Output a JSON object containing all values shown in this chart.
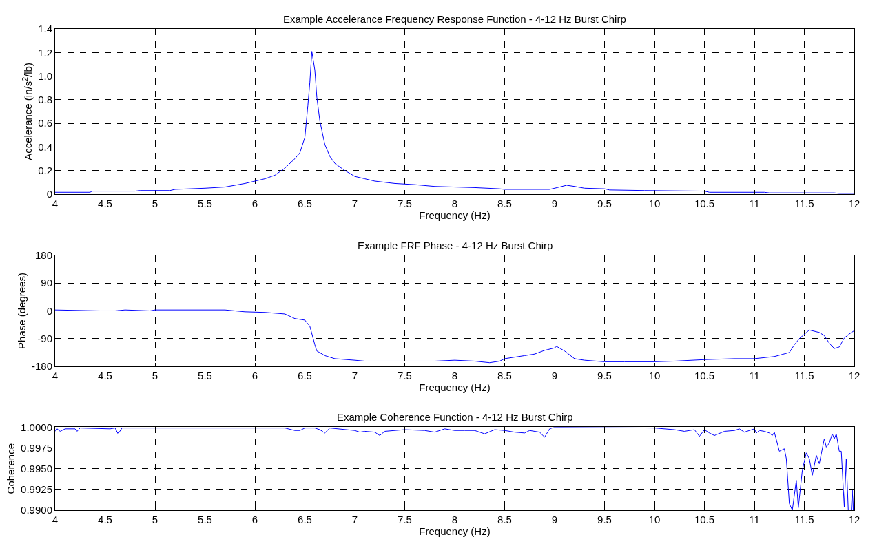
{
  "chart_data": [
    {
      "type": "line",
      "title": "Example Accelerance Frequency Response Function - 4-12 Hz Burst Chirp",
      "xlabel": "Frequency (Hz)",
      "ylabel": "Accelerance (in/s$^{2}$/lb)",
      "xlim": [
        4,
        12
      ],
      "ylim": [
        0,
        1.4
      ],
      "xticks": [
        4,
        4.5,
        5,
        5.5,
        6,
        6.5,
        7,
        7.5,
        8,
        8.5,
        9,
        9.5,
        10,
        10.5,
        11,
        11.5,
        12
      ],
      "yticks": [
        0,
        0.2,
        0.4,
        0.6,
        0.8,
        {
          "value": 1.0,
          "label": "1.0"
        },
        1.2,
        1.4
      ],
      "grid": true,
      "line_style": "solid",
      "series": [
        {
          "color": "#0000ff",
          "x": [
            4.0,
            4.35,
            4.37,
            4.8,
            4.85,
            5.15,
            5.2,
            5.5,
            5.7,
            5.8,
            5.9,
            6.0,
            6.1,
            6.2,
            6.3,
            6.4,
            6.45,
            6.5,
            6.53,
            6.55,
            6.57,
            6.6,
            6.62,
            6.65,
            6.7,
            6.75,
            6.8,
            6.9,
            7.0,
            7.1,
            7.2,
            7.4,
            7.6,
            7.8,
            8.0,
            8.2,
            8.45,
            8.5,
            8.95,
            9.05,
            9.12,
            9.2,
            9.3,
            9.5,
            9.55,
            9.9,
            10.5,
            10.55,
            11.1,
            11.15,
            11.55,
            11.8,
            11.85,
            12.0
          ],
          "values": [
            0.015,
            0.015,
            0.025,
            0.025,
            0.03,
            0.03,
            0.04,
            0.05,
            0.06,
            0.075,
            0.09,
            0.11,
            0.13,
            0.16,
            0.22,
            0.3,
            0.35,
            0.48,
            0.75,
            0.95,
            1.21,
            1.05,
            0.82,
            0.62,
            0.42,
            0.32,
            0.26,
            0.2,
            0.15,
            0.13,
            0.11,
            0.09,
            0.08,
            0.065,
            0.06,
            0.055,
            0.045,
            0.04,
            0.04,
            0.06,
            0.075,
            0.065,
            0.05,
            0.045,
            0.035,
            0.03,
            0.025,
            0.015,
            0.015,
            0.01,
            0.01,
            0.01,
            0.005,
            0.005
          ]
        }
      ]
    },
    {
      "type": "line",
      "title": "Example FRF Phase - 4-12 Hz Burst Chirp",
      "xlabel": "Frequency (Hz)",
      "ylabel": "Phase (degrees)",
      "xlim": [
        4,
        12
      ],
      "ylim": [
        -180,
        180
      ],
      "xticks": [
        4,
        4.5,
        5,
        5.5,
        6,
        6.5,
        7,
        7.5,
        8,
        8.5,
        9,
        9.5,
        10,
        10.5,
        11,
        11.5,
        12
      ],
      "yticks": [
        -180,
        -90,
        0,
        90,
        180
      ],
      "grid": true,
      "line_style": "solid",
      "series": [
        {
          "color": "#0000ff",
          "x": [
            4.0,
            4.45,
            4.6,
            4.7,
            4.95,
            5.0,
            5.7,
            5.8,
            5.9,
            6.1,
            6.3,
            6.4,
            6.5,
            6.55,
            6.6,
            6.62,
            6.7,
            6.8,
            7.0,
            7.1,
            7.5,
            7.8,
            8.0,
            8.2,
            8.35,
            8.45,
            8.5,
            8.6,
            8.7,
            8.8,
            8.9,
            9.0,
            9.02,
            9.1,
            9.2,
            9.3,
            9.5,
            9.7,
            10.0,
            10.2,
            10.5,
            10.8,
            11.0,
            11.2,
            11.35,
            11.4,
            11.45,
            11.55,
            11.65,
            11.7,
            11.75,
            11.8,
            11.85,
            11.9,
            11.95,
            12.0
          ],
          "values": [
            3,
            0,
            0,
            3,
            0,
            3,
            3,
            0,
            -3,
            -5,
            -10,
            -25,
            -30,
            -50,
            -110,
            -130,
            -145,
            -155,
            -160,
            -163,
            -163,
            -163,
            -160,
            -163,
            -168,
            -163,
            -155,
            -150,
            -145,
            -140,
            -128,
            -120,
            -115,
            -130,
            -155,
            -160,
            -165,
            -165,
            -165,
            -163,
            -158,
            -155,
            -155,
            -148,
            -135,
            -110,
            -90,
            -62,
            -70,
            -80,
            -105,
            -122,
            -117,
            -88,
            -75,
            -64
          ]
        }
      ]
    },
    {
      "type": "line",
      "title": "Example Coherence Function - 4-12 Hz Burst Chirp",
      "xlabel": "Frequency (Hz)",
      "ylabel": "Coherence",
      "xlim": [
        4,
        12
      ],
      "ylim": [
        0.99,
        1.0
      ],
      "xticks": [
        4,
        4.5,
        5,
        5.5,
        6,
        6.5,
        7,
        7.5,
        8,
        8.5,
        9,
        9.5,
        10,
        10.5,
        11,
        11.5,
        12
      ],
      "yticks": [
        {
          "value": 0.99,
          "label": "0.9900"
        },
        {
          "value": 0.9925,
          "label": "0.9925"
        },
        {
          "value": 0.995,
          "label": "0.9950"
        },
        {
          "value": 0.9975,
          "label": "0.9975"
        },
        {
          "value": 1.0,
          "label": "1.0000"
        }
      ],
      "grid": true,
      "line_style": "solid",
      "series": [
        {
          "color": "#0000ff",
          "x": [
            4.0,
            4.02,
            4.05,
            4.1,
            4.2,
            4.22,
            4.25,
            4.55,
            4.6,
            4.63,
            4.67,
            5.5,
            6.3,
            6.4,
            6.45,
            6.5,
            6.6,
            6.65,
            6.7,
            6.75,
            7.0,
            7.05,
            7.1,
            7.2,
            7.25,
            7.3,
            7.4,
            7.5,
            7.7,
            7.8,
            7.9,
            8.0,
            8.1,
            8.2,
            8.3,
            8.4,
            8.5,
            8.6,
            8.7,
            8.75,
            8.85,
            8.9,
            8.95,
            9.0,
            10.0,
            10.2,
            10.3,
            10.4,
            10.45,
            10.5,
            10.55,
            10.6,
            10.7,
            10.8,
            10.85,
            10.9,
            11.0,
            11.02,
            11.05,
            11.1,
            11.15,
            11.18,
            11.2,
            11.25,
            11.3,
            11.32,
            11.35,
            11.38,
            11.42,
            11.44,
            11.48,
            11.52,
            11.55,
            11.58,
            11.62,
            11.65,
            11.7,
            11.72,
            11.75,
            11.78,
            11.8,
            11.82,
            11.85,
            11.87,
            11.9,
            11.92,
            11.94,
            11.97,
            11.98,
            11.99,
            12.0
          ],
          "values": [
            0.9995,
            0.9998,
            0.9995,
            0.9998,
            0.9998,
            0.9995,
            0.9999,
            0.9998,
            0.9999,
            0.9992,
            0.9999,
            0.9999,
            0.9999,
            0.9996,
            0.9996,
            0.9999,
            0.9999,
            0.9997,
            0.9993,
            0.9999,
            0.9996,
            0.9994,
            0.9995,
            0.9994,
            0.999,
            0.9995,
            0.9996,
            0.9997,
            0.9996,
            0.9994,
            0.9998,
            0.9996,
            0.9996,
            0.9996,
            0.9992,
            0.9997,
            0.9996,
            0.9994,
            0.9993,
            0.9996,
            0.9994,
            0.9988,
            0.9998,
            1.0,
            0.9999,
            0.9997,
            0.9995,
            0.9997,
            0.9989,
            0.9997,
            0.9993,
            0.999,
            0.9995,
            0.9996,
            0.9998,
            0.9994,
            0.9998,
            0.9993,
            0.9996,
            0.9995,
            0.9993,
            0.999,
            0.9994,
            0.9971,
            0.9974,
            0.9962,
            0.9908,
            0.99,
            0.9936,
            0.9903,
            0.9948,
            0.9969,
            0.9962,
            0.9942,
            0.9966,
            0.9956,
            0.9986,
            0.9976,
            0.9981,
            0.9992,
            0.9986,
            0.9992,
            0.9971,
            0.9971,
            0.9904,
            0.9962,
            0.99,
            0.99,
            0.9924,
            0.99,
            0.9929
          ]
        }
      ]
    }
  ]
}
